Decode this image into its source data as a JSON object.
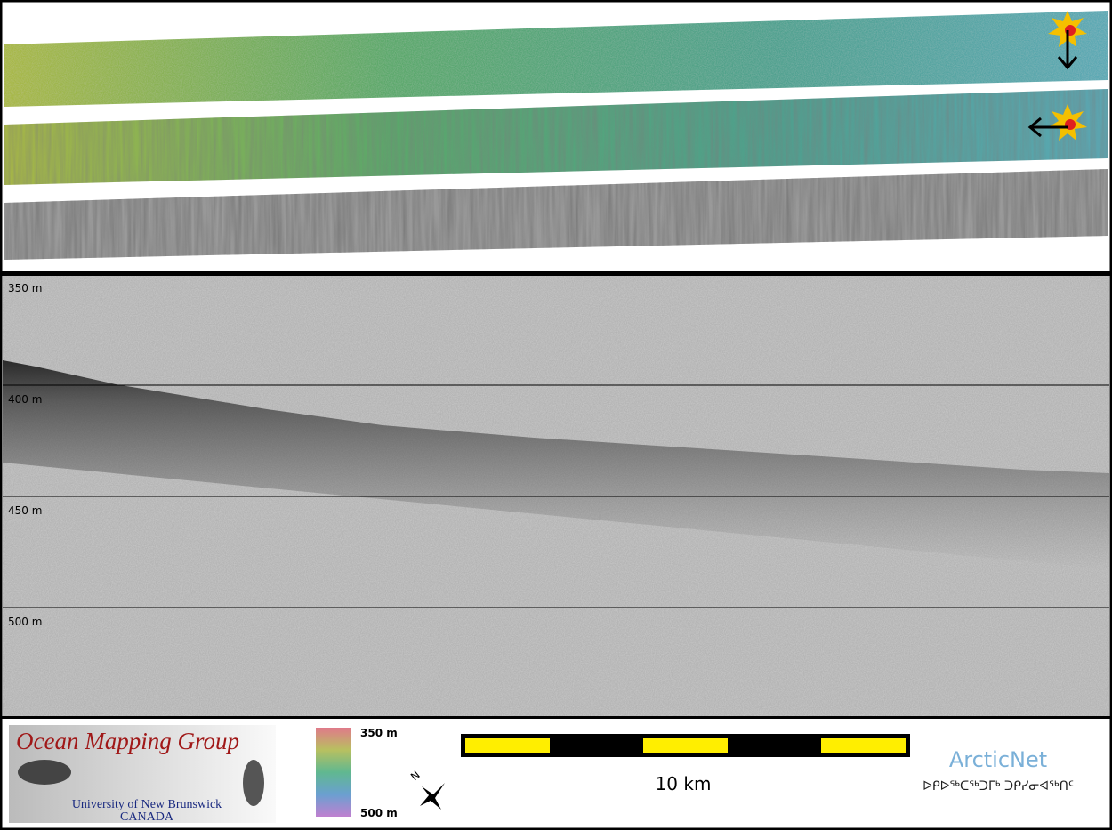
{
  "sonar_panel": {
    "depth_labels": [
      "350 m",
      "400 m",
      "450 m",
      "500 m"
    ]
  },
  "logo": {
    "title": "Ocean Mapping Group",
    "university": "University of New Brunswick",
    "country": "CANADA"
  },
  "color_scale": {
    "top": "350 m",
    "bottom": "500 m"
  },
  "compass": {
    "north": "N"
  },
  "scale_bar": {
    "label": "10 km"
  },
  "partner": {
    "name": "ArcticNet",
    "syllabics": "ᐅᑭᐅᖅᑕᖅᑐᒥᒃ ᑐᑭᓯᓂᐊᖅᑎᑦ"
  }
}
